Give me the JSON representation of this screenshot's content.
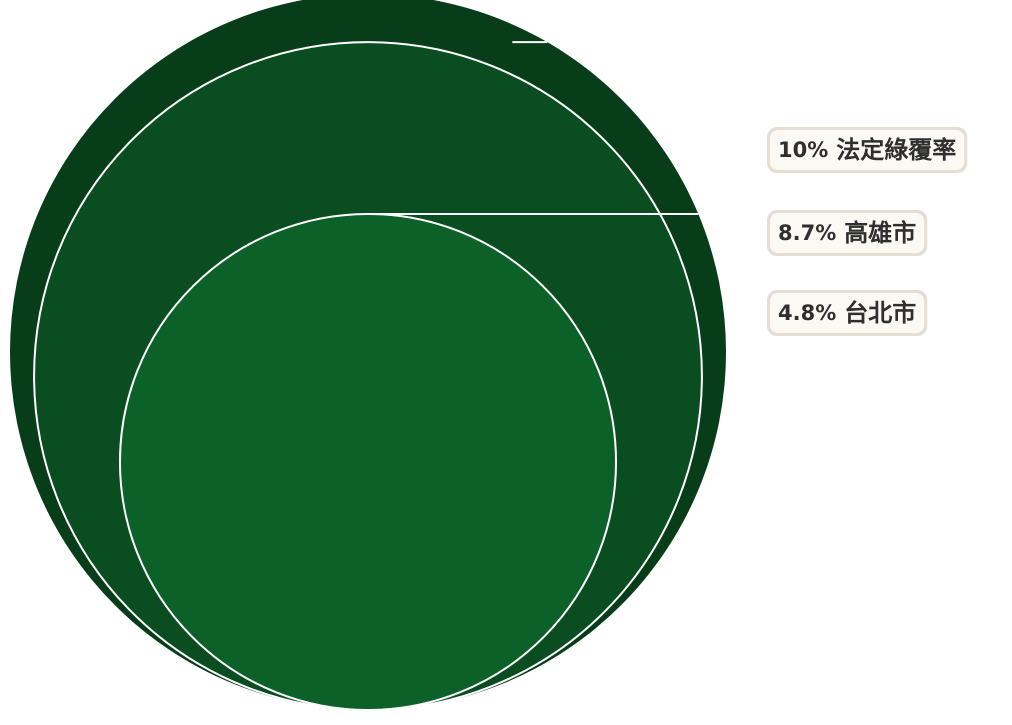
{
  "chart_data": {
    "type": "nested-circle",
    "series": [
      {
        "name": "法定綠覆率",
        "value": 10,
        "value_label": "10%",
        "color": "#073d19"
      },
      {
        "name": "高雄市",
        "value": 8.7,
        "value_label": "8.7%",
        "color": "#0a4d21"
      },
      {
        "name": "台北市",
        "value": 4.8,
        "value_label": "4.8%",
        "color": "#0b6127"
      }
    ],
    "legend_position": "right",
    "outline_color": "#ffffff"
  }
}
